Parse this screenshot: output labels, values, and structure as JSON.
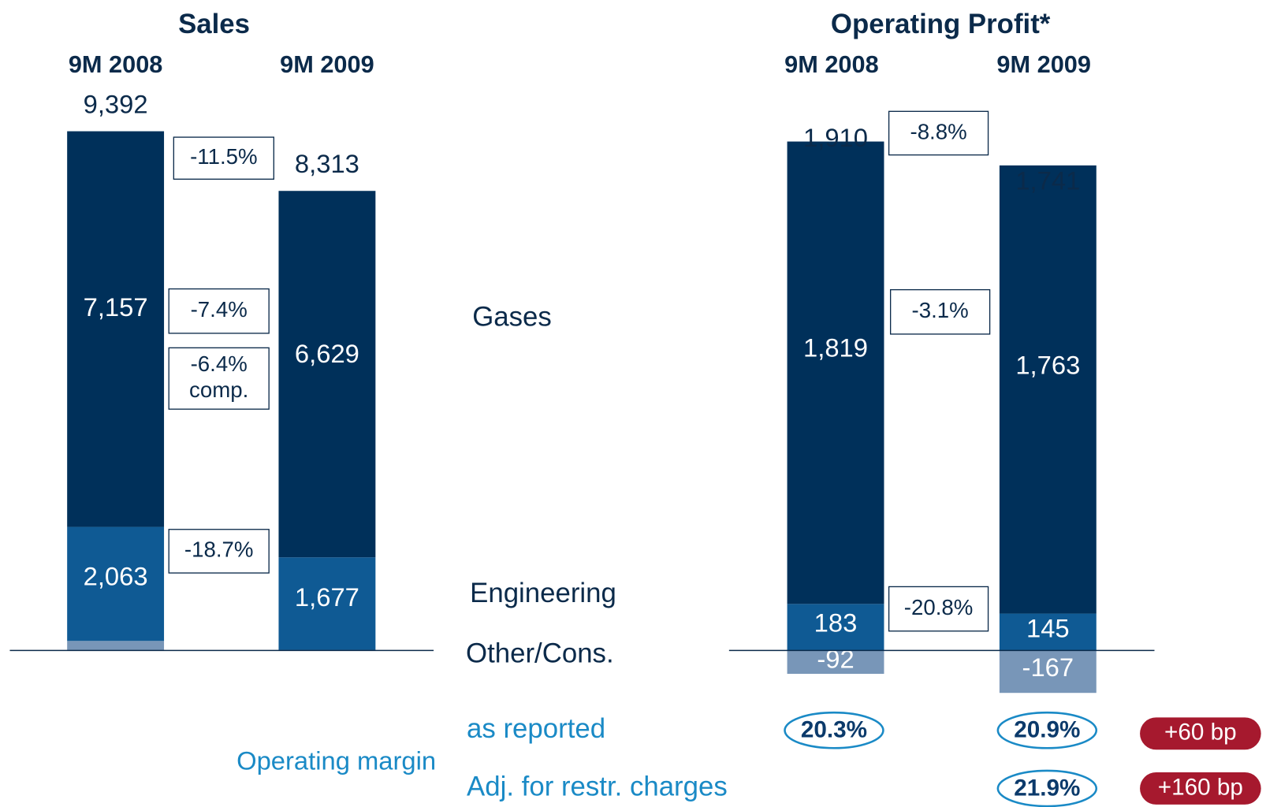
{
  "chart_data": [
    {
      "type": "bar",
      "stacked": true,
      "title": "Sales",
      "categories": [
        "9M 2008",
        "9M 2009"
      ],
      "series": [
        {
          "name": "Other/Cons.",
          "color": "#7896b8",
          "values": [
            172,
            7
          ]
        },
        {
          "name": "Engineering",
          "color": "#0f5a94",
          "values": [
            2063,
            1677
          ],
          "value_labels": [
            "2,063",
            "1,677"
          ]
        },
        {
          "name": "Gases",
          "color": "#00305a",
          "values": [
            7157,
            6629
          ],
          "value_labels": [
            "7,157",
            "6,629"
          ]
        }
      ],
      "totals": [
        9392,
        8313
      ],
      "total_labels": [
        "9,392",
        "8,313"
      ],
      "ylim": [
        0,
        10000
      ],
      "annotations": [
        [
          "-11.5%"
        ],
        [
          "-7.4%"
        ],
        [
          "-6.4%",
          "comp."
        ],
        [
          "-18.7%"
        ]
      ]
    },
    {
      "type": "bar",
      "stacked": true,
      "title": "Operating Profit*",
      "categories": [
        "9M 2008",
        "9M 2009"
      ],
      "series": [
        {
          "name": "Other/Cons.",
          "color": "#7896b8",
          "values": [
            -92,
            -167
          ],
          "value_labels": [
            "-92",
            "-167"
          ]
        },
        {
          "name": "Engineering",
          "color": "#0f5a94",
          "values": [
            183,
            145
          ],
          "value_labels": [
            "183",
            "145"
          ]
        },
        {
          "name": "Gases",
          "color": "#00305a",
          "values": [
            1819,
            1763
          ],
          "value_labels": [
            "1,819",
            "1,763"
          ]
        }
      ],
      "totals": [
        1910,
        1741
      ],
      "total_labels": [
        "1,910",
        "1,741"
      ],
      "ylim": [
        -300,
        2200
      ],
      "annotations": [
        [
          "-8.8%"
        ],
        [
          "-3.1%"
        ],
        [
          "-20.8%"
        ]
      ]
    }
  ],
  "margins": {
    "label": "Operating margin",
    "rows": [
      {
        "label": "as reported",
        "ovals": [
          "20.3%",
          "20.9%"
        ],
        "change": "+60 bp"
      },
      {
        "label": "Adj. for restr. charges",
        "ovals": [
          "21.9%"
        ],
        "change": "+160 bp"
      }
    ]
  }
}
